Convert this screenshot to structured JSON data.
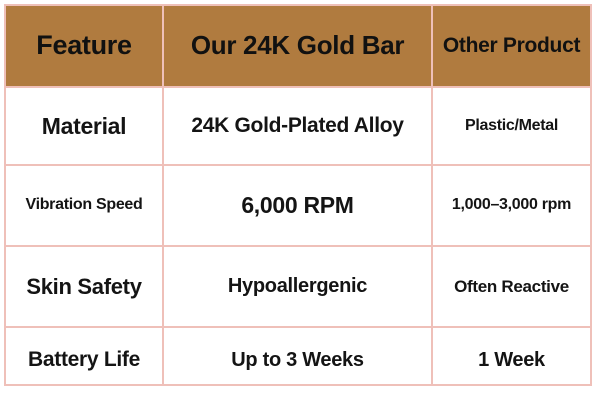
{
  "chart_data": {
    "type": "table",
    "columns": [
      "Feature",
      "Our 24K Gold Bar",
      "Other Product"
    ],
    "rows": [
      [
        "Material",
        "24K Gold-Plated Alloy",
        "Plastic/Metal"
      ],
      [
        "Vibration Speed",
        "6,000 RPM",
        "1,000–3,000 rpm"
      ],
      [
        "Skin Safety",
        "Hypoallergenic",
        "Often Reactive"
      ],
      [
        "Battery Life",
        "Up to 3 Weeks",
        "1 Week"
      ]
    ],
    "layout_hints": {
      "header_row": true,
      "grid": "on",
      "column_emphasis": "middle column widest"
    },
    "colors": {
      "header_background": "#b07b3f",
      "gridline": "#efc0b9",
      "cell_background": "#ffffff",
      "text": "#141414"
    }
  }
}
